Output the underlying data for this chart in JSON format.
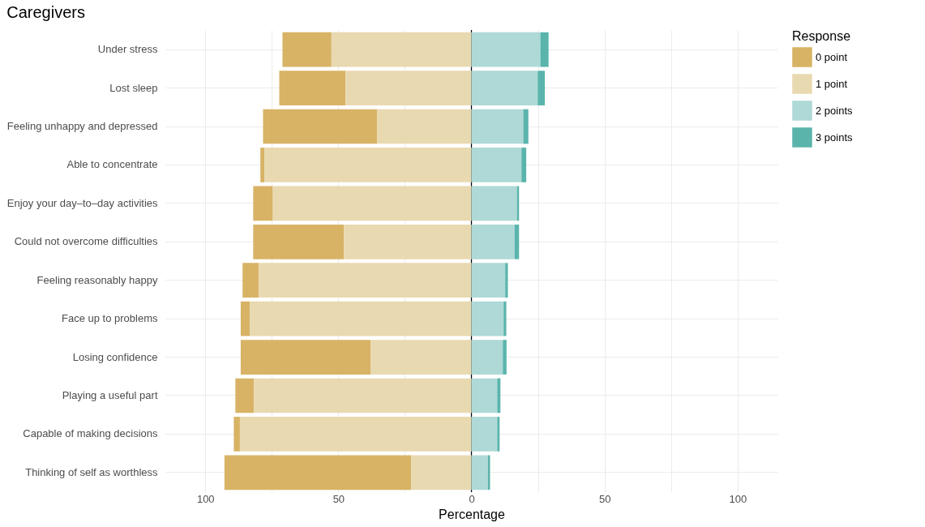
{
  "chart_data": {
    "type": "bar",
    "orientation": "horizontal",
    "stacked": true,
    "title": "Caregivers",
    "xlabel": "Percentage",
    "legend_title": "Response",
    "legend": "right",
    "grid": true,
    "categories": [
      "Under stress",
      "Lost sleep",
      "Feeling unhappy and depressed",
      "Able to concentrate",
      "Enjoy your day–to–day activities",
      "Could not overcome difficulties",
      "Feeling reasonably happy",
      "Face up to problems",
      "Losing confidence",
      "Playing a useful part",
      "Capable of making decisions",
      "Thinking of self as worthless"
    ],
    "series": [
      {
        "name": "0 point",
        "color": "#d8b365",
        "values": [
          -18.4,
          -24.9,
          -42.8,
          -1.5,
          -7.4,
          -34.1,
          -6.1,
          -3.5,
          -48.8,
          -7.0,
          -2.3,
          -70.2
        ]
      },
      {
        "name": "1 point",
        "color": "#e9d9b1",
        "values": [
          -52.6,
          -47.3,
          -35.5,
          -77.8,
          -74.6,
          -47.9,
          -79.9,
          -83.2,
          -37.9,
          -81.7,
          -87.0,
          -22.6
        ]
      },
      {
        "name": "2 points",
        "color": "#aed9d6",
        "values": [
          25.9,
          24.9,
          19.5,
          18.8,
          17.1,
          16.2,
          12.7,
          12.1,
          11.8,
          9.7,
          9.7,
          6.2
        ]
      },
      {
        "name": "3 points",
        "color": "#5ab4ac",
        "values": [
          3.1,
          2.7,
          1.9,
          1.8,
          0.8,
          1.7,
          1.0,
          1.0,
          1.4,
          1.2,
          0.9,
          0.8
        ]
      }
    ],
    "xlim": [
      -115,
      115
    ],
    "xticks": [
      {
        "value": -100,
        "label": "100"
      },
      {
        "value": -75,
        "label": null
      },
      {
        "value": -50,
        "label": "50"
      },
      {
        "value": -25,
        "label": null
      },
      0,
      {
        "value": 25,
        "label": null
      },
      50,
      {
        "value": 75,
        "label": null
      },
      100
    ],
    "ref_lines": [
      {
        "axis": "x",
        "value": 0,
        "color": "#000000"
      }
    ]
  }
}
